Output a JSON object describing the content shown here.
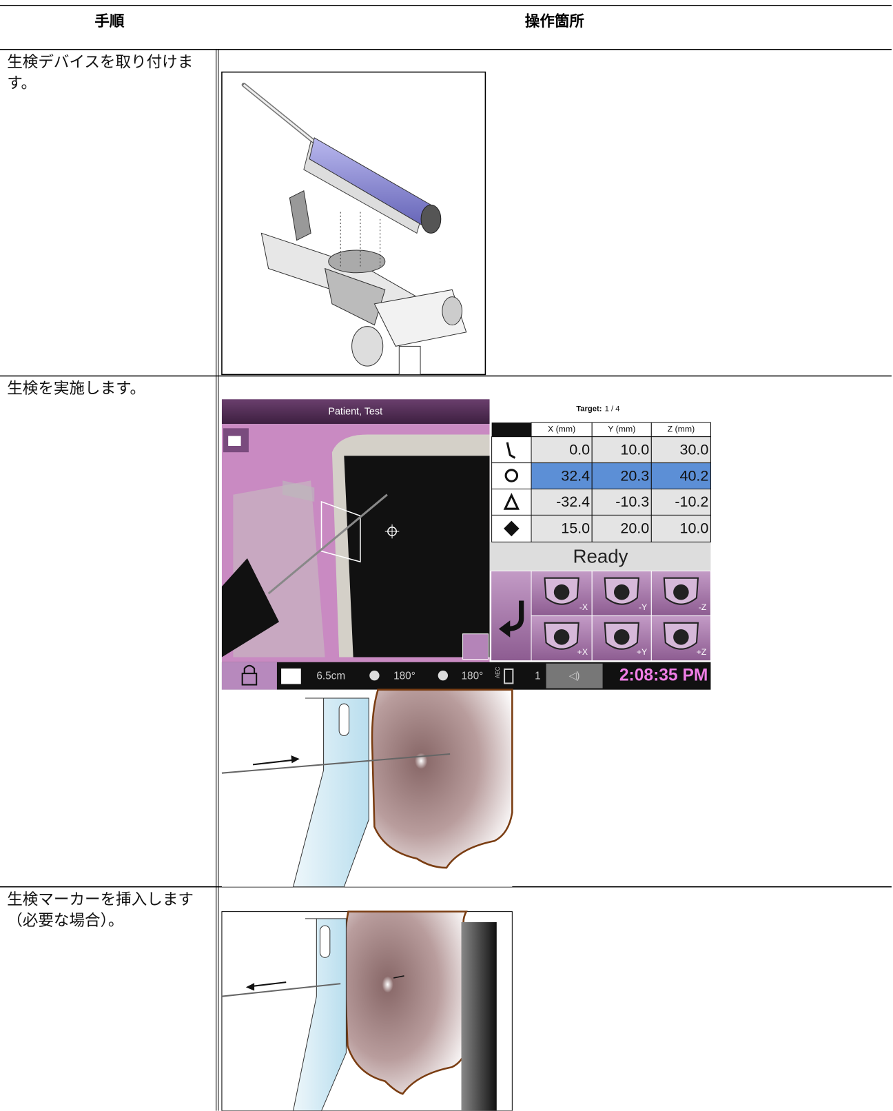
{
  "table": {
    "headers": [
      "手順",
      "操作箇所"
    ],
    "steps": [
      "生検デバイスを取り付けます。",
      "生検を実施します。",
      "生検マーカーを挿入します（必要な場合）。"
    ]
  },
  "screenshot": {
    "patient": "Patient, Test",
    "target_label": "Target:",
    "target_value": "1 / 4",
    "columns": [
      "X (mm)",
      "Y (mm)",
      "Z (mm)"
    ],
    "rows": [
      [
        "0.0",
        "10.0",
        "30.0"
      ],
      [
        "32.4",
        "20.3",
        "40.2"
      ],
      [
        "-32.4",
        "-10.3",
        "-10.2"
      ],
      [
        "15.0",
        "20.0",
        "10.0"
      ]
    ],
    "status": "Ready",
    "buttons": [
      "-X",
      "-Y",
      "-Z",
      "+X",
      "+Y",
      "+Z"
    ],
    "status_bar": {
      "compression": "6.5cm",
      "angle_1": "180°",
      "angle_2": "180°",
      "aec": "AEC",
      "aec_value": "1",
      "time": "2:08:35 PM"
    }
  }
}
